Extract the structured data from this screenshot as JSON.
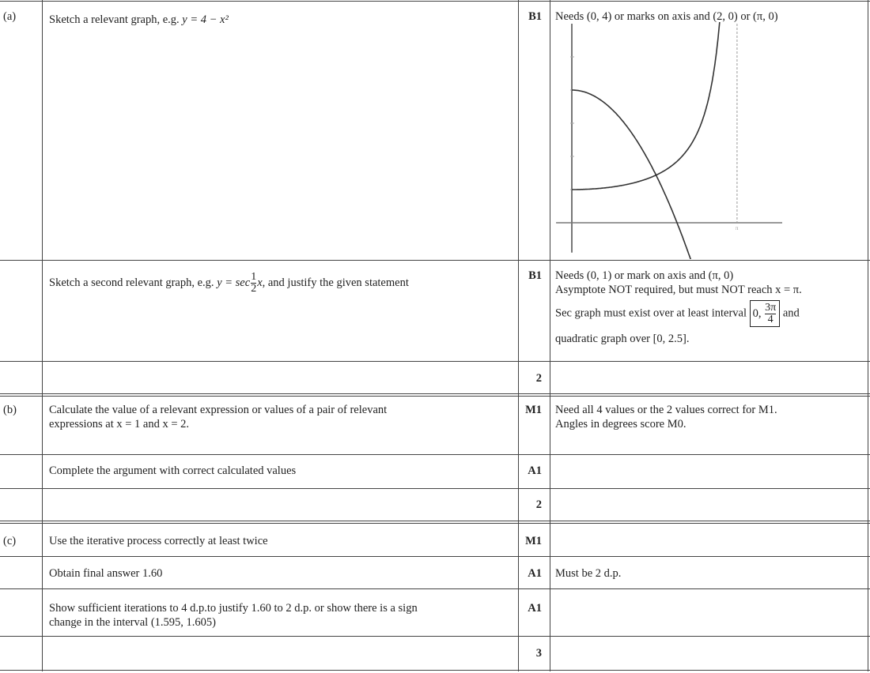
{
  "rows": [
    {
      "part": "(a)",
      "desc": "Sketch a relevant graph, e.g.",
      "desc_math": "y = 4 − x²",
      "mark": "B1",
      "note": "Needs (0, 4) or marks on axis and (2, 0) or (π, 0)"
    },
    {
      "desc": "Sketch a second relevant graph, e.g.",
      "desc_math_pre": "y = sec",
      "frac_num": "1",
      "frac_den": "2",
      "desc_math_post": "x",
      "desc_post": ", and justify the given statement",
      "mark": "B1",
      "note_lines": [
        "Needs (0, 1) or mark on axis and (π, 0)",
        "Asymptote NOT required, but must NOT reach x = π."
      ],
      "note_interval_pre": "Sec graph must exist over at least interval",
      "interval_zero": "0,",
      "interval_num": "3π",
      "interval_den": "4",
      "note_interval_post": "and",
      "note_last": "quadratic graph over [0, 2.5]."
    },
    {
      "mark": "2"
    },
    {
      "part": "(b)",
      "desc_lines": [
        "Calculate the value of a relevant expression or values of a pair of relevant",
        "expressions at x = 1 and x = 2."
      ],
      "mark": "M1",
      "note_lines": [
        "Need all 4 values or the 2 values correct for M1.",
        "Angles in degrees score M0."
      ]
    },
    {
      "desc": "Complete the argument with correct calculated values",
      "mark": "A1"
    },
    {
      "mark": "2"
    },
    {
      "part": "(c)",
      "desc": "Use the iterative process correctly at least twice",
      "mark": "M1"
    },
    {
      "desc": "Obtain final answer 1.60",
      "mark": "A1",
      "note": "Must be 2 d.p."
    },
    {
      "desc_lines": [
        "Show sufficient iterations to 4 d.p.to justify 1.60 to 2 d.p. or show there is a sign",
        "change in the interval (1.595, 1.605)"
      ],
      "mark": "A1"
    },
    {
      "mark": "3"
    }
  ],
  "graph": {
    "curves": [
      "y = 4 − x²",
      "y = sec(x/2)"
    ],
    "x_range": [
      -0.3,
      4.0
    ],
    "y_range": [
      -0.9,
      6.0
    ],
    "y_ticks": [
      1,
      2,
      3,
      4,
      5
    ],
    "x_tick": "π",
    "asymptote_x": 3.14159
  }
}
